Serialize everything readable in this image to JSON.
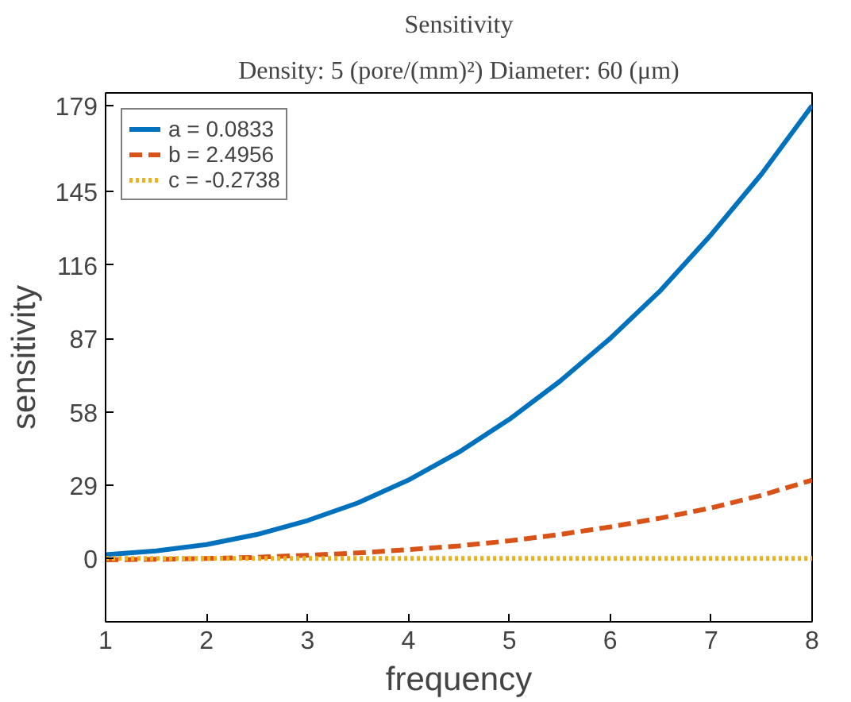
{
  "chart_data": {
    "type": "line",
    "title": "Sensitivity",
    "subtitle": "Density: 5 (pore/(mm)²) Diameter: 60 (μm)",
    "xlabel": "frequency",
    "ylabel": "sensitivity",
    "x": [
      1,
      1.5,
      2,
      2.5,
      3,
      3.5,
      4,
      4.5,
      5,
      5.5,
      6,
      6.5,
      7,
      7.5,
      8
    ],
    "series": [
      {
        "name": "a = 0.0833",
        "color": "#0072bd",
        "line_style": "solid",
        "values": [
          1.5,
          3,
          5.5,
          9.5,
          15,
          22,
          31,
          42,
          55,
          70,
          87,
          106,
          128,
          152,
          179
        ]
      },
      {
        "name": "b = 2.4956",
        "color": "#d95319",
        "line_style": "dashed",
        "values": [
          -0.5,
          -0.3,
          0,
          0.5,
          1.3,
          2.2,
          3.5,
          5,
          7,
          9.5,
          12.5,
          16,
          20,
          25,
          31
        ]
      },
      {
        "name": "c = -0.2738",
        "color": "#edb120",
        "line_style": "dotted",
        "values": [
          0,
          0,
          0,
          0,
          0,
          0,
          0,
          0,
          0,
          0,
          0,
          0,
          0,
          0,
          0
        ]
      }
    ],
    "xlim": [
      1,
      8
    ],
    "xticks": [
      1,
      2,
      3,
      4,
      5,
      6,
      7,
      8
    ],
    "ylim": [
      -25,
      184
    ],
    "yticks": [
      0,
      29,
      58,
      87,
      116,
      145,
      179
    ],
    "grid": false,
    "legend": "top left"
  }
}
